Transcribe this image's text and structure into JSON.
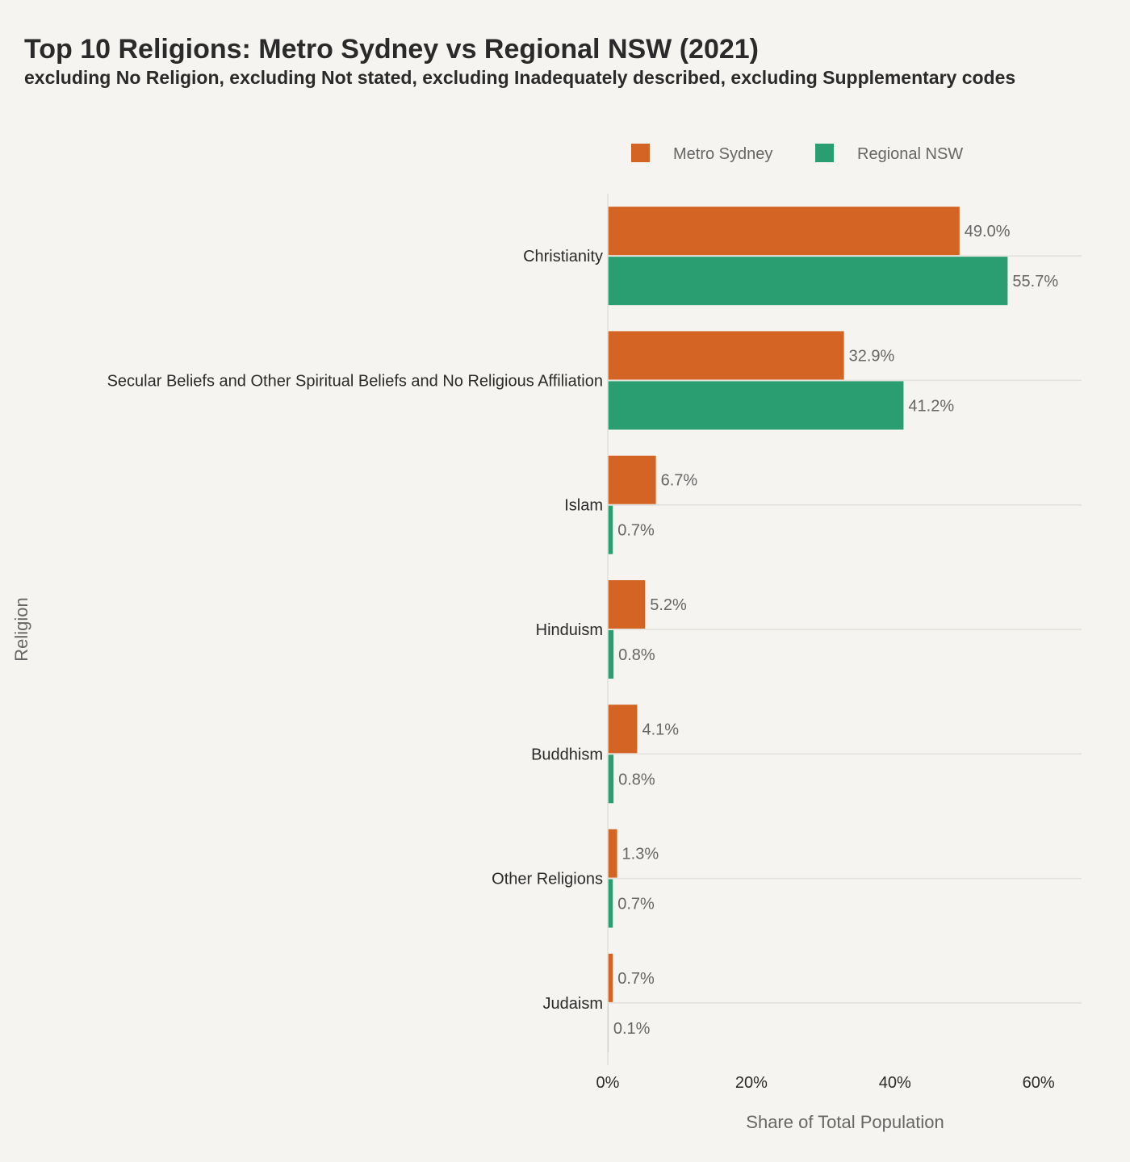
{
  "chart_data": {
    "type": "bar",
    "orientation": "horizontal",
    "title": "Top 10 Religions: Metro Sydney vs Regional NSW (2021)",
    "subtitle": "excluding No Religion, excluding Not stated, excluding Inadequately described, excluding Supplementary codes",
    "xlabel": "Share of Total Population",
    "ylabel": "Religion",
    "xlim": [
      0,
      66
    ],
    "x_ticks": [
      0,
      20,
      40,
      60
    ],
    "x_tick_labels": [
      "0%",
      "20%",
      "40%",
      "60%"
    ],
    "value_suffix": "%",
    "legend_position": "top",
    "grid": "horizontal category lines",
    "categories": [
      "Christianity",
      "Secular Beliefs and Other Spiritual Beliefs and No Religious Affiliation",
      "Islam",
      "Hinduism",
      "Buddhism",
      "Other Religions",
      "Judaism"
    ],
    "series": [
      {
        "name": "Metro Sydney",
        "color": "#d36424",
        "values": [
          49.0,
          32.9,
          6.7,
          5.2,
          4.1,
          1.3,
          0.7
        ]
      },
      {
        "name": "Regional NSW",
        "color": "#2a9e70",
        "values": [
          55.7,
          41.2,
          0.7,
          0.8,
          0.8,
          0.7,
          0.1
        ]
      }
    ]
  }
}
